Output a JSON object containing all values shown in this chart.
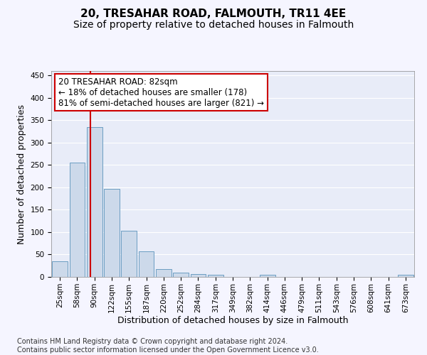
{
  "title": "20, TRESAHAR ROAD, FALMOUTH, TR11 4EE",
  "subtitle": "Size of property relative to detached houses in Falmouth",
  "xlabel": "Distribution of detached houses by size in Falmouth",
  "ylabel": "Number of detached properties",
  "categories": [
    "25sqm",
    "58sqm",
    "90sqm",
    "122sqm",
    "155sqm",
    "187sqm",
    "220sqm",
    "252sqm",
    "284sqm",
    "317sqm",
    "349sqm",
    "382sqm",
    "414sqm",
    "446sqm",
    "479sqm",
    "511sqm",
    "543sqm",
    "576sqm",
    "608sqm",
    "641sqm",
    "673sqm"
  ],
  "values": [
    35,
    255,
    335,
    197,
    103,
    57,
    17,
    10,
    7,
    5,
    0,
    0,
    4,
    0,
    0,
    0,
    0,
    0,
    0,
    0,
    4
  ],
  "bar_color": "#ccd9ea",
  "bar_edge_color": "#6b9dc2",
  "highlight_line_color": "#cc0000",
  "ylim": [
    0,
    460
  ],
  "yticks": [
    0,
    50,
    100,
    150,
    200,
    250,
    300,
    350,
    400,
    450
  ],
  "annotation_line1": "20 TRESAHAR ROAD: 82sqm",
  "annotation_line2": "← 18% of detached houses are smaller (178)",
  "annotation_line3": "81% of semi-detached houses are larger (821) →",
  "annotation_box_color": "#ffffff",
  "annotation_box_edge_color": "#cc0000",
  "footer_text": "Contains HM Land Registry data © Crown copyright and database right 2024.\nContains public sector information licensed under the Open Government Licence v3.0.",
  "fig_background_color": "#f5f5ff",
  "plot_background_color": "#e8ecf8",
  "grid_color": "#ffffff",
  "title_fontsize": 11,
  "subtitle_fontsize": 10,
  "label_fontsize": 9,
  "tick_fontsize": 7.5,
  "annotation_fontsize": 8.5,
  "footer_fontsize": 7
}
